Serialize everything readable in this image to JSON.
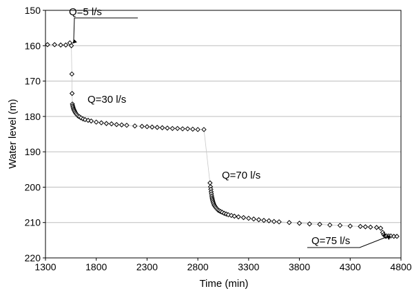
{
  "chart_data": {
    "type": "scatter",
    "xlabel": "Time (min)",
    "ylabel": "Water level (m)",
    "xlim": [
      1300,
      4800
    ],
    "ylim": [
      150,
      220
    ],
    "y_inverted": true,
    "x_ticks": [
      1300,
      1800,
      2300,
      2800,
      3300,
      3800,
      4300,
      4800
    ],
    "y_ticks": [
      150,
      160,
      170,
      180,
      190,
      200,
      210,
      220
    ],
    "grid": "horizontal",
    "marker": "diamond",
    "annotations": [
      {
        "text": "Q=5 l/s",
        "x": 1550,
        "y": 160,
        "arrow": true
      },
      {
        "text": "Q=30 l/s",
        "x": 1560,
        "y": 177,
        "arrow": false
      },
      {
        "text": "Q=70 l/s",
        "x": 2930,
        "y": 199,
        "arrow": false
      },
      {
        "text": "Q=75 l/s",
        "x": 4640,
        "y": 213,
        "arrow": true
      }
    ],
    "series": [
      {
        "x": [
          1320,
          1390,
          1450,
          1500,
          1540,
          1555,
          1560,
          1562,
          1565,
          1568,
          1572,
          1576,
          1580,
          1585,
          1590,
          1596,
          1603,
          1612,
          1622,
          1635,
          1650,
          1670,
          1690,
          1720,
          1750,
          1800,
          1850,
          1900,
          1950,
          2000,
          2050,
          2100,
          2180,
          2250,
          2300,
          2350,
          2400,
          2450,
          2500,
          2550,
          2600,
          2650,
          2700,
          2750,
          2800,
          2860,
          2920,
          2925,
          2928,
          2931,
          2934,
          2937,
          2940,
          2943,
          2946,
          2950,
          2955,
          2960,
          2966,
          2973,
          2981,
          2990,
          3000,
          3012,
          3025,
          3040,
          3060,
          3080,
          3100,
          3130,
          3160,
          3200,
          3250,
          3300,
          3350,
          3400,
          3450,
          3500,
          3550,
          3600,
          3700,
          3800,
          3900,
          4000,
          4100,
          4200,
          4300,
          4400,
          4450,
          4500,
          4560,
          4600,
          4620,
          4630,
          4640,
          4645,
          4650,
          4660,
          4680,
          4700,
          4730,
          4760
        ],
        "y": [
          159.7,
          159.7,
          159.8,
          159.8,
          159.2,
          160.0,
          168.0,
          173.5,
          176.5,
          177.0,
          177.4,
          177.8,
          178.1,
          178.4,
          178.7,
          179.0,
          179.3,
          179.6,
          179.9,
          180.1,
          180.4,
          180.7,
          180.9,
          181.1,
          181.3,
          181.6,
          181.8,
          182.0,
          182.1,
          182.3,
          182.4,
          182.5,
          182.7,
          182.8,
          182.9,
          183.0,
          183.1,
          183.2,
          183.3,
          183.4,
          183.4,
          183.5,
          183.5,
          183.6,
          183.7,
          183.7,
          198.8,
          199.9,
          200.6,
          201.3,
          201.9,
          202.5,
          203.0,
          203.4,
          203.8,
          204.2,
          204.6,
          205.0,
          205.3,
          205.6,
          205.9,
          206.2,
          206.5,
          206.7,
          206.9,
          207.1,
          207.4,
          207.6,
          207.8,
          208.0,
          208.2,
          208.4,
          208.6,
          208.8,
          209.0,
          209.2,
          209.4,
          209.5,
          209.7,
          209.8,
          210.0,
          210.2,
          210.4,
          210.5,
          210.7,
          210.8,
          211.0,
          211.1,
          211.2,
          211.3,
          211.4,
          211.6,
          212.8,
          213.4,
          213.7,
          213.8,
          213.9,
          213.8,
          213.8,
          213.8,
          213.9,
          213.9
        ]
      }
    ]
  }
}
